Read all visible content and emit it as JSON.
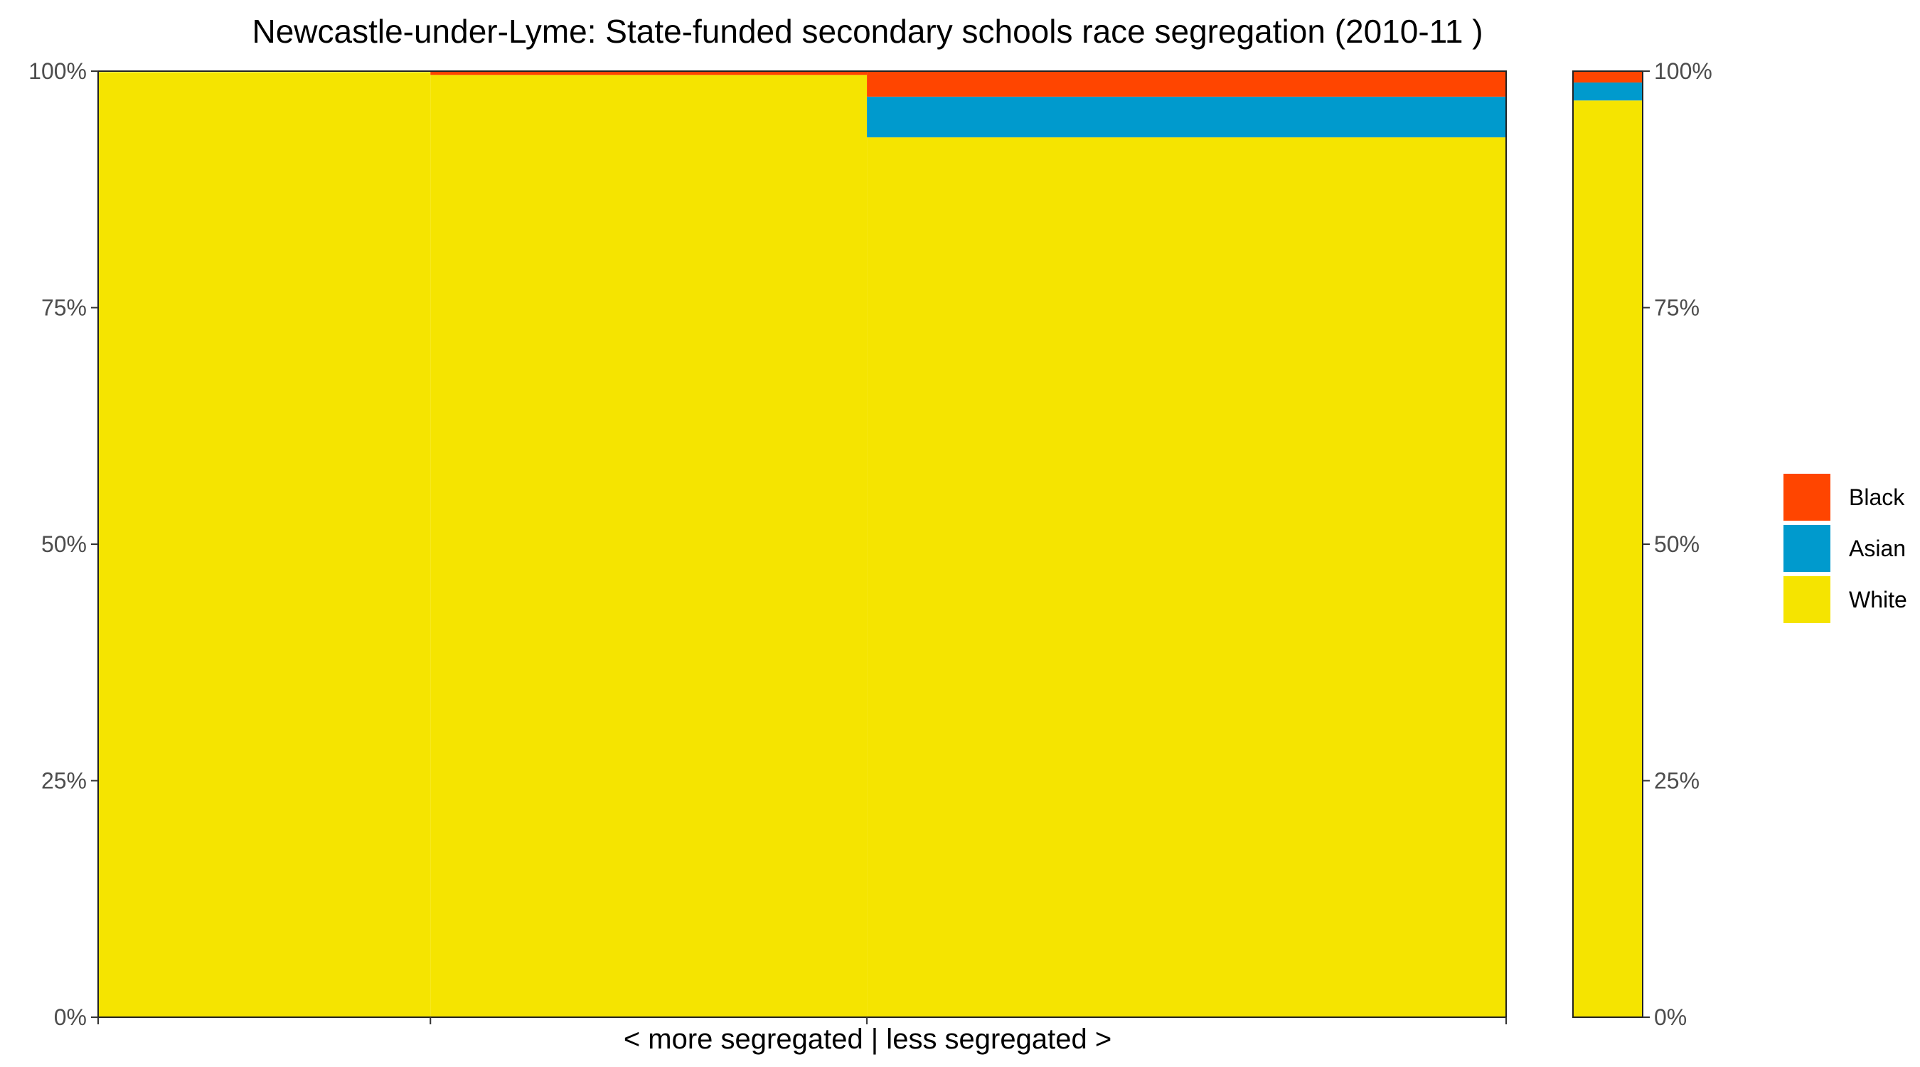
{
  "chart_data": {
    "type": "bar",
    "subtype": "stacked-variable-width (mosaic)",
    "title": "Newcastle-under-Lyme: State-funded secondary schools race segregation (2010-11 )",
    "xlabel": "< more segregated | less segregated >",
    "ylabel": "",
    "ylim": [
      0,
      1
    ],
    "y_ticks": [
      0,
      0.25,
      0.5,
      0.75,
      1
    ],
    "y_tick_labels": [
      "0%",
      "25%",
      "50%",
      "75%",
      "100%"
    ],
    "y_axis_secondary": true,
    "grid": false,
    "legend_position": "right",
    "x_total": 1.0,
    "series": [
      {
        "name": "Black",
        "color": "#FF4500"
      },
      {
        "name": "Asian",
        "color": "#009ACD"
      },
      {
        "name": "White",
        "color": "#F5E400"
      }
    ],
    "segments": [
      {
        "x_start": 0.0,
        "x_end": 0.236,
        "values": {
          "Black": 0.0,
          "Asian": 0.0,
          "White": 0.999
        }
      },
      {
        "x_start": 0.236,
        "x_end": 0.546,
        "values": {
          "Black": 0.004,
          "Asian": 0.0,
          "White": 0.996
        }
      },
      {
        "x_start": 0.546,
        "x_end": 1.0,
        "values": {
          "Black": 0.027,
          "Asian": 0.043,
          "White": 0.93
        }
      }
    ],
    "summary_bar": {
      "values": {
        "Black": 0.012,
        "Asian": 0.019,
        "White": 0.969
      }
    },
    "x_ticks": [
      0.0,
      0.236,
      1.0
    ]
  }
}
